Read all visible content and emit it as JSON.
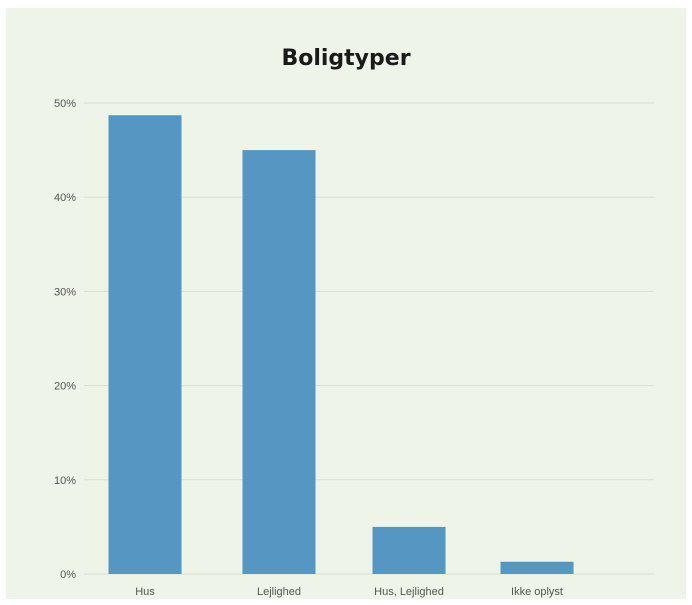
{
  "chart_data": {
    "type": "bar",
    "title": "Boligtyper",
    "xlabel": "",
    "ylabel": "",
    "categories": [
      "Hus",
      "Lejlighed",
      "Hus, Lejlighed",
      "Ikke oplyst"
    ],
    "values": [
      48.7,
      45.0,
      5.0,
      1.3
    ],
    "value_unit": "%",
    "ylim": [
      0,
      50
    ],
    "yticks": [
      0,
      10,
      20,
      30,
      40,
      50
    ],
    "ytick_labels": [
      "0%",
      "10%",
      "20%",
      "30%",
      "40%",
      "50%"
    ],
    "grid": true,
    "legend": "none",
    "colors": {
      "bar": "#5596c3",
      "gridline": "#d8dfd2",
      "background": "#eef4e8"
    }
  }
}
